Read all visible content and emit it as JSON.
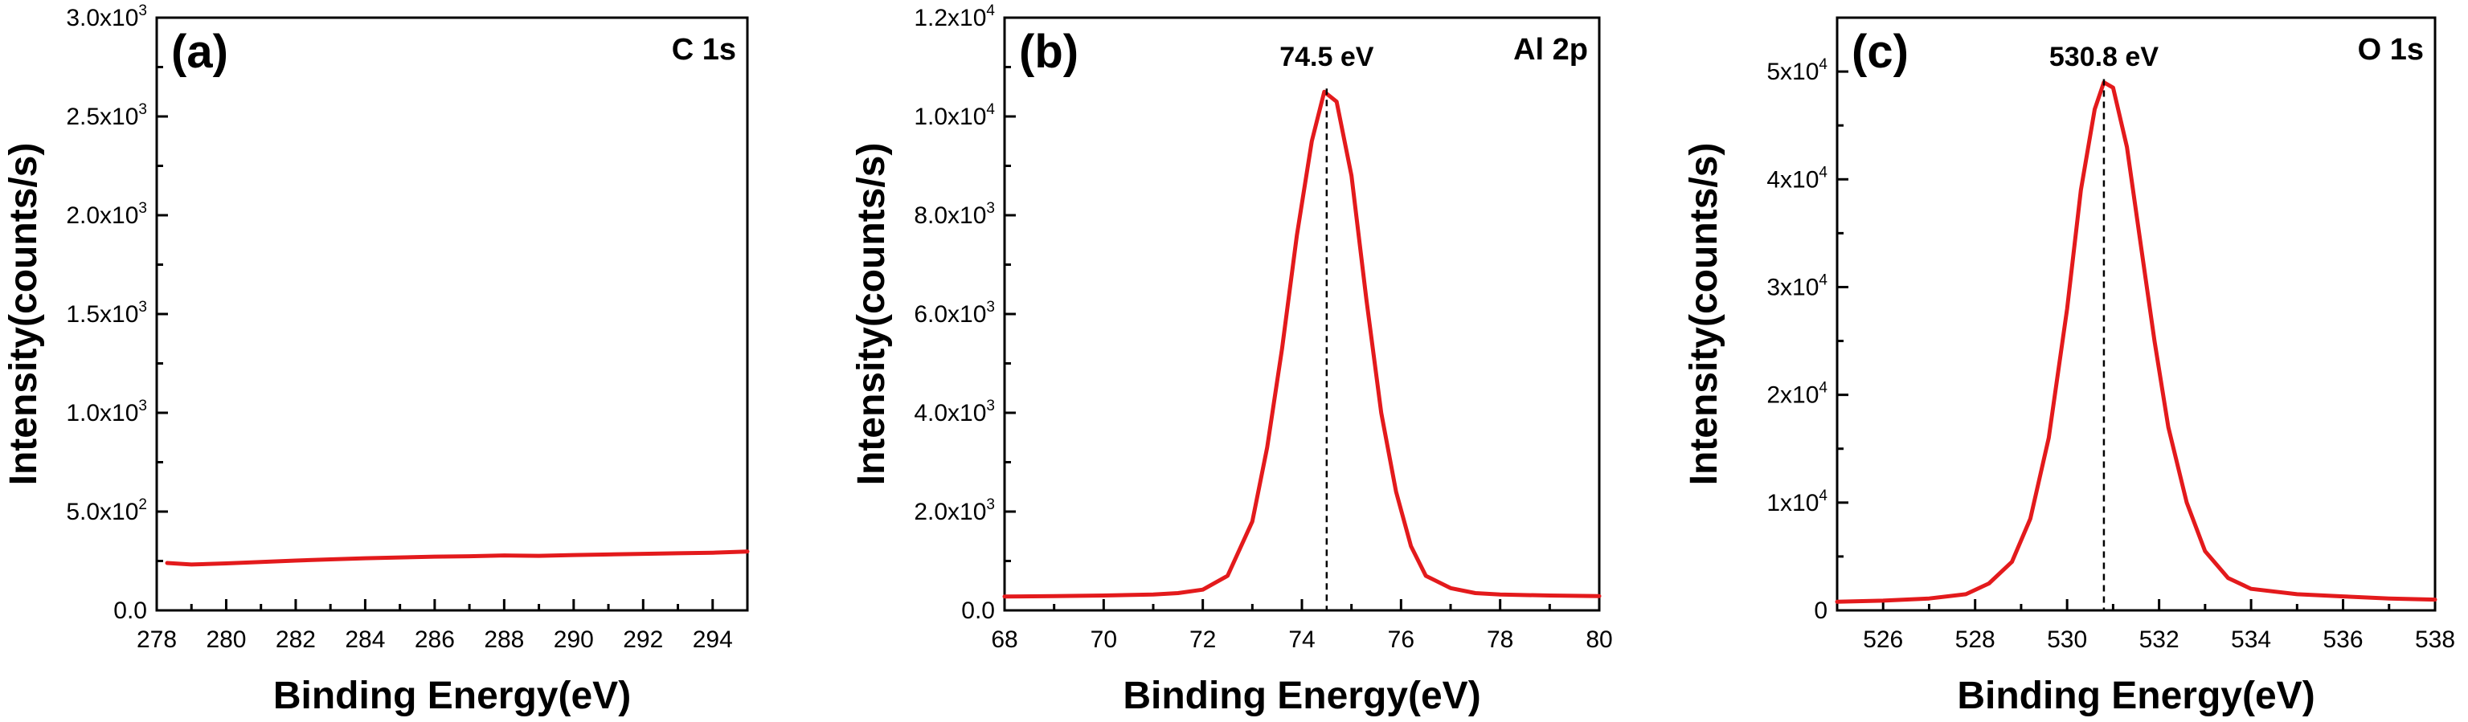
{
  "colors": {
    "series": "#e31a1c",
    "axes": "#000000",
    "background": "#ffffff"
  },
  "chart_data": [
    {
      "type": "line",
      "panel_label": "(a)",
      "title": "C 1s",
      "xlabel": "Binding Energy(eV)",
      "ylabel": "Intensity(counts/s)",
      "xlim": [
        278,
        295
      ],
      "ylim": [
        0,
        3000
      ],
      "xticks": [
        278,
        280,
        282,
        284,
        286,
        288,
        290,
        292,
        294
      ],
      "xtick_labels": [
        "278",
        "280",
        "282",
        "284",
        "286",
        "288",
        "290",
        "292",
        "294"
      ],
      "yticks": [
        0,
        500,
        1000,
        1500,
        2000,
        2500,
        3000
      ],
      "ytick_labels": [
        {
          "base": "0.0",
          "exp": ""
        },
        {
          "base": "5.0x10",
          "exp": "2"
        },
        {
          "base": "1.0x10",
          "exp": "3"
        },
        {
          "base": "1.5x10",
          "exp": "3"
        },
        {
          "base": "2.0x10",
          "exp": "3"
        },
        {
          "base": "2.5x10",
          "exp": "3"
        },
        {
          "base": "3.0x10",
          "exp": "3"
        }
      ],
      "series": [
        {
          "name": "C 1s",
          "x": [
            278.3,
            279,
            280,
            281,
            282,
            283,
            284,
            285,
            286,
            287,
            288,
            289,
            290,
            291,
            292,
            293,
            294,
            295
          ],
          "y": [
            240,
            232,
            238,
            245,
            252,
            258,
            264,
            268,
            272,
            274,
            278,
            276,
            280,
            283,
            286,
            289,
            292,
            298
          ]
        }
      ],
      "peak": null
    },
    {
      "type": "line",
      "panel_label": "(b)",
      "title": "Al 2p",
      "xlabel": "Binding Energy(eV)",
      "ylabel": "Intensity(counts/s)",
      "xlim": [
        68,
        80
      ],
      "ylim": [
        0,
        12000
      ],
      "xticks": [
        68,
        70,
        72,
        74,
        76,
        78,
        80
      ],
      "xtick_labels": [
        "68",
        "70",
        "72",
        "74",
        "76",
        "78",
        "80"
      ],
      "yticks": [
        0,
        2000,
        4000,
        6000,
        8000,
        10000,
        12000
      ],
      "ytick_labels": [
        {
          "base": "0.0",
          "exp": ""
        },
        {
          "base": "2.0x10",
          "exp": "3"
        },
        {
          "base": "4.0x10",
          "exp": "3"
        },
        {
          "base": "6.0x10",
          "exp": "3"
        },
        {
          "base": "8.0x10",
          "exp": "3"
        },
        {
          "base": "1.0x10",
          "exp": "4"
        },
        {
          "base": "1.2x10",
          "exp": "4"
        }
      ],
      "series": [
        {
          "name": "Al 2p",
          "x": [
            68,
            69,
            70,
            71,
            71.5,
            72,
            72.5,
            73,
            73.3,
            73.6,
            73.9,
            74.2,
            74.45,
            74.7,
            75.0,
            75.3,
            75.6,
            75.9,
            76.2,
            76.5,
            77.0,
            77.5,
            78,
            79,
            80
          ],
          "y": [
            280,
            290,
            300,
            320,
            350,
            420,
            700,
            1800,
            3300,
            5300,
            7600,
            9500,
            10500,
            10300,
            8800,
            6300,
            4000,
            2400,
            1300,
            700,
            450,
            350,
            320,
            300,
            290
          ]
        }
      ],
      "peak": {
        "x": 74.5,
        "label": "74.5 eV"
      }
    },
    {
      "type": "line",
      "panel_label": "(c)",
      "title": "O 1s",
      "xlabel": "Binding Energy(eV)",
      "ylabel": "Intensity(counts/s)",
      "xlim": [
        525,
        538
      ],
      "ylim": [
        0,
        55000
      ],
      "xticks": [
        526,
        528,
        530,
        532,
        534,
        536,
        538
      ],
      "xtick_labels": [
        "526",
        "528",
        "530",
        "532",
        "534",
        "536",
        "538"
      ],
      "yticks": [
        0,
        10000,
        20000,
        30000,
        40000,
        50000
      ],
      "ytick_labels": [
        {
          "base": "0",
          "exp": ""
        },
        {
          "base": "1x10",
          "exp": "4"
        },
        {
          "base": "2x10",
          "exp": "4"
        },
        {
          "base": "3x10",
          "exp": "4"
        },
        {
          "base": "4x10",
          "exp": "4"
        },
        {
          "base": "5x10",
          "exp": "4"
        }
      ],
      "series": [
        {
          "name": "O 1s",
          "x": [
            525,
            526,
            527,
            527.8,
            528.3,
            528.8,
            529.2,
            529.6,
            530.0,
            530.3,
            530.6,
            530.8,
            531.0,
            531.3,
            531.6,
            531.9,
            532.2,
            532.6,
            533.0,
            533.5,
            534,
            535,
            536,
            537,
            538
          ],
          "y": [
            800,
            900,
            1100,
            1500,
            2500,
            4500,
            8500,
            16000,
            28000,
            39000,
            46500,
            49000,
            48500,
            43000,
            34000,
            25000,
            17000,
            10000,
            5500,
            3000,
            2000,
            1500,
            1300,
            1100,
            1000
          ]
        }
      ],
      "peak": {
        "x": 530.8,
        "label": "530.8 eV"
      }
    }
  ]
}
